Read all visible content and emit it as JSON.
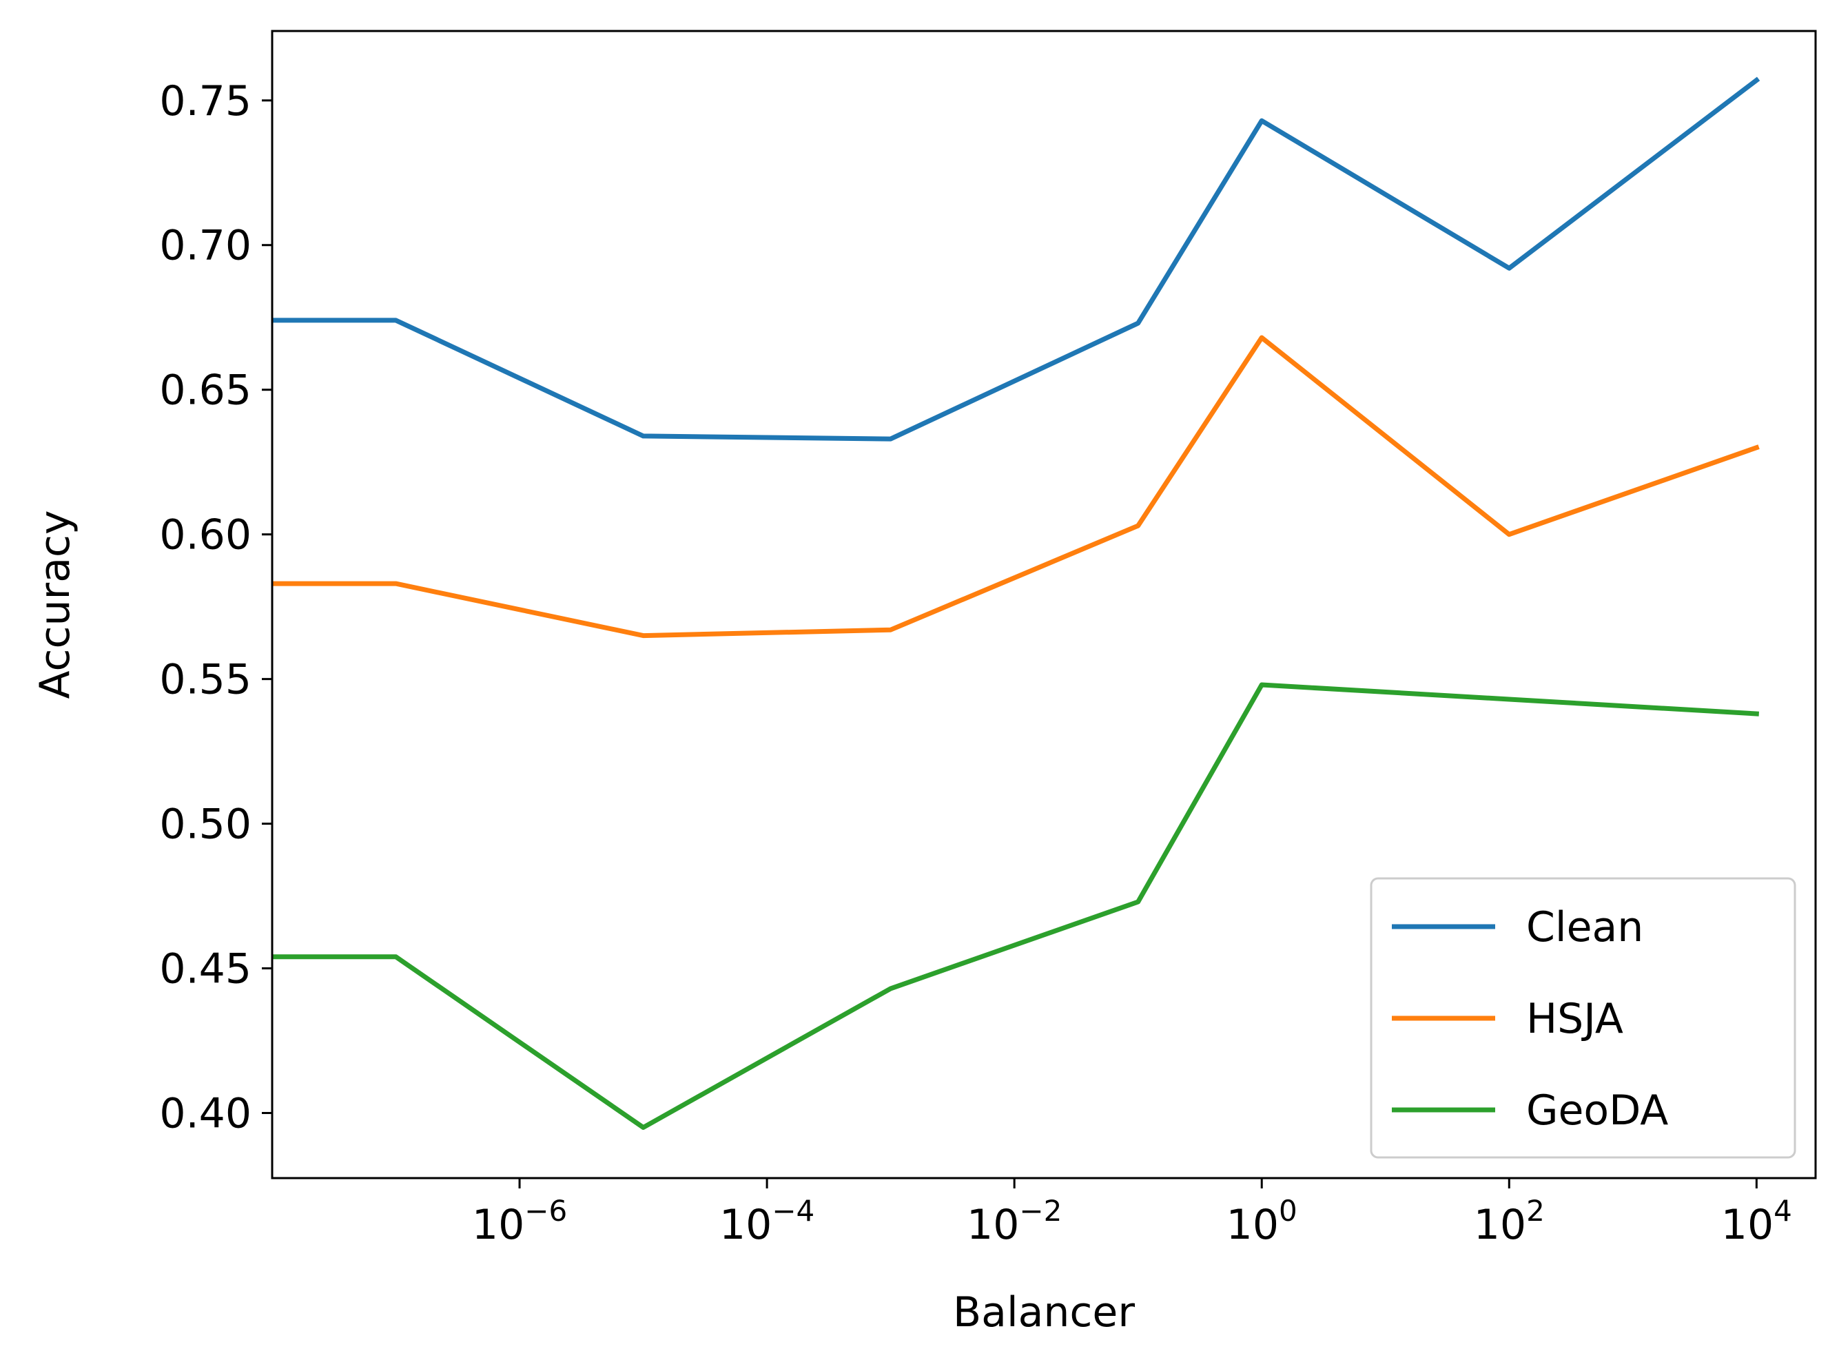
{
  "chart_data": {
    "type": "line",
    "title": "",
    "xlabel": "Balancer",
    "ylabel": "Accuracy",
    "xscale": "log",
    "xlim": [
      1e-08,
      30000
    ],
    "ylim": [
      0.3775,
      0.774
    ],
    "xticks": [
      {
        "value": 1e-06,
        "base": "10",
        "exp": "−6"
      },
      {
        "value": 0.0001,
        "base": "10",
        "exp": "−4"
      },
      {
        "value": 0.01,
        "base": "10",
        "exp": "−2"
      },
      {
        "value": 1,
        "base": "10",
        "exp": "0"
      },
      {
        "value": 100,
        "base": "10",
        "exp": "2"
      },
      {
        "value": 10000,
        "base": "10",
        "exp": "4"
      }
    ],
    "yticks": [
      {
        "value": 0.4,
        "label": "0.40"
      },
      {
        "value": 0.45,
        "label": "0.45"
      },
      {
        "value": 0.5,
        "label": "0.50"
      },
      {
        "value": 0.55,
        "label": "0.55"
      },
      {
        "value": 0.6,
        "label": "0.60"
      },
      {
        "value": 0.65,
        "label": "0.65"
      },
      {
        "value": 0.7,
        "label": "0.70"
      },
      {
        "value": 0.75,
        "label": "0.75"
      }
    ],
    "x": [
      1e-08,
      1e-07,
      1e-05,
      0.001,
      0.1,
      1,
      100,
      10000
    ],
    "series": [
      {
        "name": "Clean",
        "color": "#1f77b4",
        "values": [
          0.674,
          0.674,
          0.634,
          0.633,
          0.673,
          0.743,
          0.692,
          0.757
        ]
      },
      {
        "name": "HSJA",
        "color": "#ff7f0e",
        "values": [
          0.583,
          0.583,
          0.565,
          0.567,
          0.603,
          0.668,
          0.6,
          0.63
        ]
      },
      {
        "name": "GeoDA",
        "color": "#2ca02c",
        "values": [
          0.454,
          0.454,
          0.395,
          0.443,
          0.473,
          0.548,
          0.543,
          0.538
        ]
      }
    ],
    "grid": false,
    "legend_position": "lower-right"
  }
}
